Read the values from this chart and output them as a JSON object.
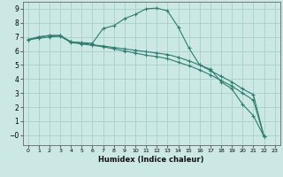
{
  "xlabel": "Humidex (Indice chaleur)",
  "bg_color": "#cce8e4",
  "grid_color": "#aad4cf",
  "line_color": "#2e7d6e",
  "xlim": [
    -0.5,
    23.5
  ],
  "ylim": [
    -0.7,
    9.5
  ],
  "xticks": [
    0,
    1,
    2,
    3,
    4,
    5,
    6,
    7,
    8,
    9,
    10,
    11,
    12,
    13,
    14,
    15,
    16,
    17,
    18,
    19,
    20,
    21,
    22,
    23
  ],
  "yticks": [
    0,
    1,
    2,
    3,
    4,
    5,
    6,
    7,
    8,
    9
  ],
  "line1_x": [
    0,
    1,
    2,
    3,
    4,
    5,
    6,
    7,
    8,
    9,
    10,
    11,
    12,
    13,
    14,
    15,
    16,
    17,
    18,
    19,
    20,
    21,
    22
  ],
  "line1_y": [
    6.8,
    7.0,
    7.1,
    7.1,
    6.65,
    6.6,
    6.55,
    7.6,
    7.8,
    8.3,
    8.6,
    9.0,
    9.05,
    8.85,
    7.7,
    6.2,
    5.0,
    4.7,
    3.8,
    3.3,
    2.2,
    1.4,
    -0.1
  ],
  "line2_x": [
    0,
    1,
    2,
    3,
    4,
    5,
    6,
    7,
    8,
    9,
    10,
    11,
    12,
    13,
    14,
    15,
    16,
    17,
    18,
    19,
    20,
    21,
    22
  ],
  "line2_y": [
    6.8,
    7.0,
    7.1,
    7.1,
    6.65,
    6.55,
    6.45,
    6.35,
    6.25,
    6.15,
    6.05,
    5.95,
    5.85,
    5.75,
    5.55,
    5.3,
    5.0,
    4.6,
    4.2,
    3.8,
    3.3,
    2.9,
    -0.1
  ],
  "line3_x": [
    0,
    1,
    2,
    3,
    4,
    5,
    6,
    7,
    8,
    9,
    10,
    11,
    12,
    13,
    14,
    15,
    16,
    17,
    18,
    19,
    20,
    21,
    22
  ],
  "line3_y": [
    6.8,
    6.9,
    7.0,
    7.05,
    6.6,
    6.5,
    6.4,
    6.3,
    6.15,
    6.0,
    5.85,
    5.7,
    5.6,
    5.45,
    5.2,
    4.95,
    4.65,
    4.3,
    3.9,
    3.5,
    3.0,
    2.5,
    -0.1
  ]
}
